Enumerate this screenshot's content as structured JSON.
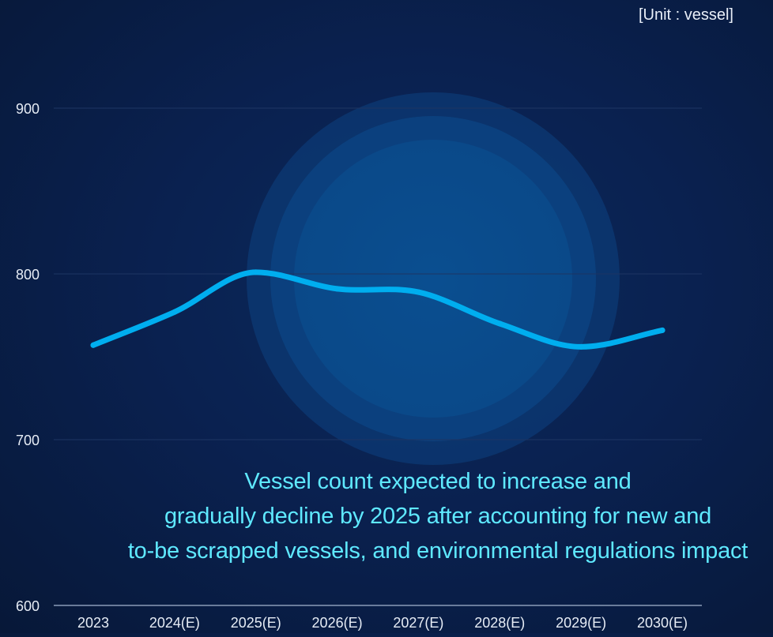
{
  "unit_label": "[Unit : vessel]",
  "caption": {
    "lines": [
      "Vessel count expected to increase and",
      "gradually decline by 2025 after accounting for new and",
      "to-be scrapped vessels, and environmental regulations impact"
    ]
  },
  "colors": {
    "line": "#00aeef",
    "caption": "#5fe9ff",
    "axis_text": "#e6ecf5",
    "gridline": "#1d3563"
  },
  "chart_data": {
    "type": "line",
    "categories": [
      "2023",
      "2024(E)",
      "2025(E)",
      "2026(E)",
      "2027(E)",
      "2028(E)",
      "2029(E)",
      "2030(E)"
    ],
    "series": [
      {
        "values": [
          757,
          777,
          801,
          791,
          789,
          770,
          756,
          766
        ]
      }
    ],
    "yticks": [
      600,
      700,
      800,
      900
    ],
    "ylim": [
      600,
      900
    ],
    "grid": true,
    "title": "",
    "xlabel": "",
    "ylabel": ""
  }
}
